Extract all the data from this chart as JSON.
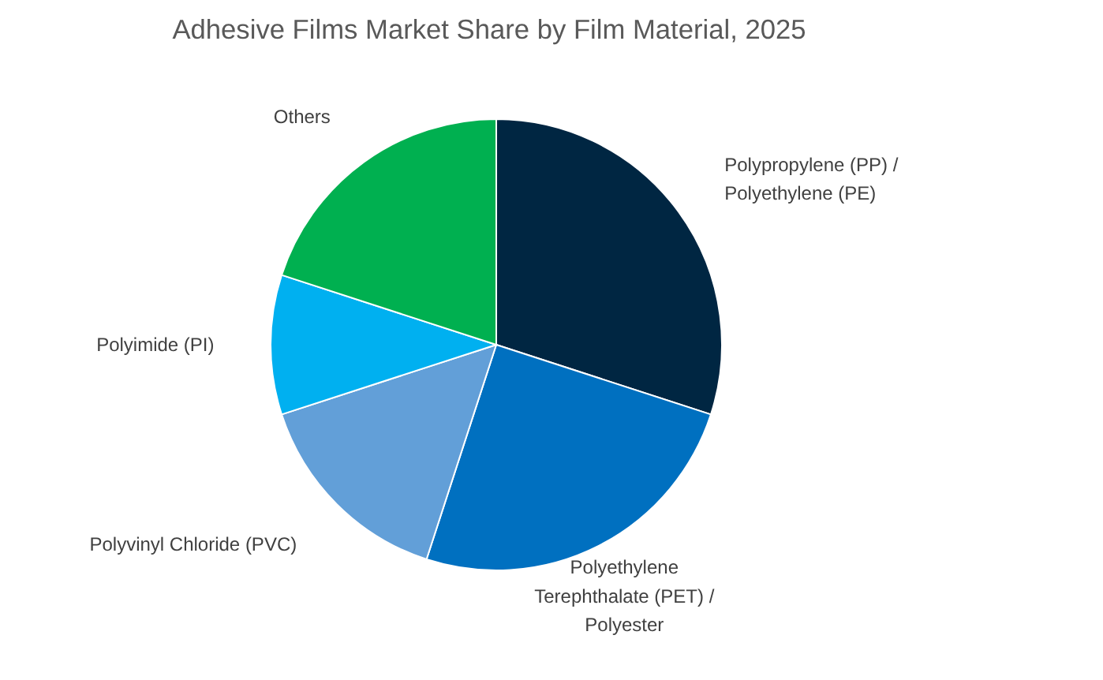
{
  "chart_data": {
    "type": "pie",
    "title": "Adhesive Films Market Share by Film Material, 2025",
    "categories": [
      "Polypropylene (PP) / Polyethylene (PE)",
      "Polyethylene Terephthalate (PET) / Polyester",
      "Polyvinyl Chloride (PVC)",
      "Polyimide (PI)",
      "Others"
    ],
    "values": [
      30,
      25,
      15,
      10,
      20
    ],
    "colors": [
      "#002642",
      "#0070c0",
      "#629fd8",
      "#00b0f0",
      "#00b050"
    ]
  }
}
